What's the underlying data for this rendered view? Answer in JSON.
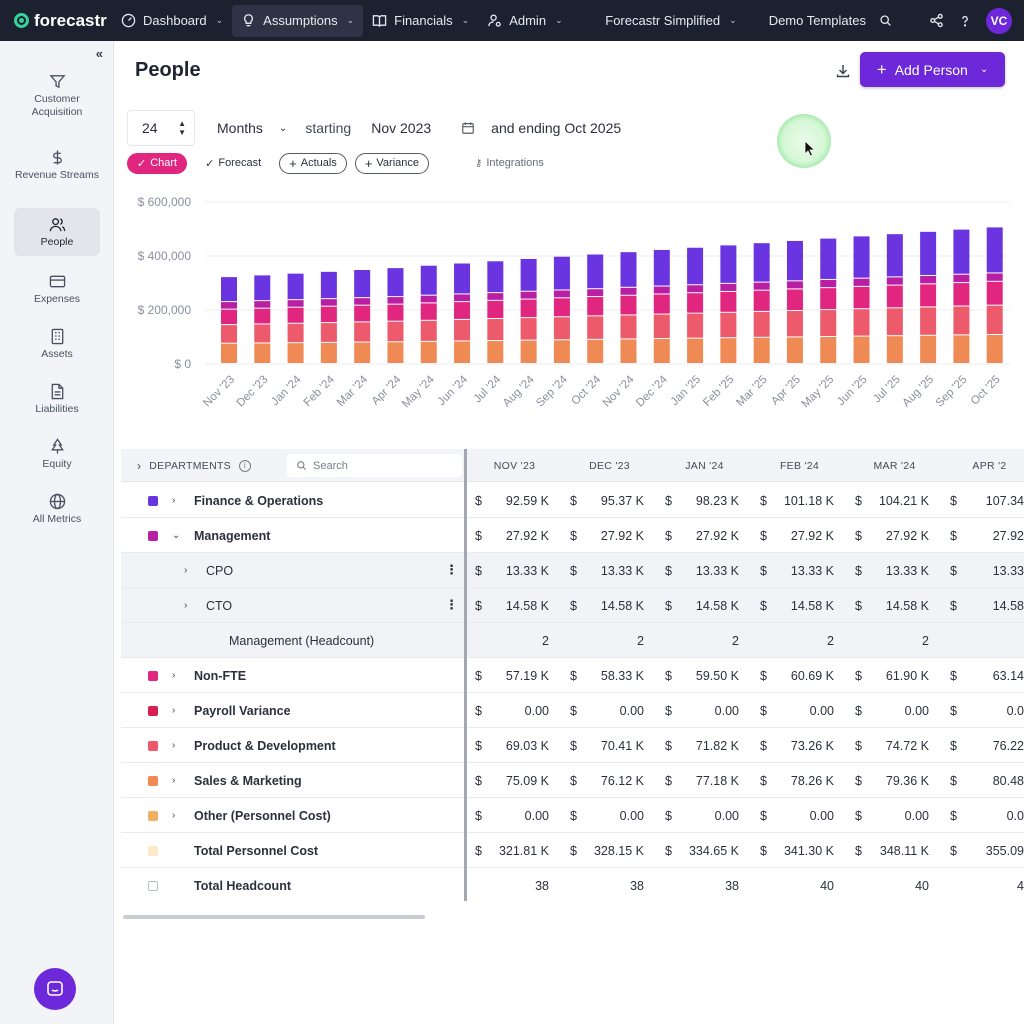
{
  "topbar": {
    "logo": "forecastr",
    "nav": [
      {
        "label": "Dashboard"
      },
      {
        "label": "Assumptions"
      },
      {
        "label": "Financials"
      },
      {
        "label": "Admin"
      }
    ],
    "model": "Forecastr Simplified",
    "templates": "Demo Templates",
    "avatar": "VC"
  },
  "sidebar": {
    "items": [
      {
        "label": "Customer Acquisition",
        "icon": "funnel-icon"
      },
      {
        "label": "Revenue Streams",
        "icon": "dollar-icon"
      },
      {
        "label": "People",
        "icon": "people-icon"
      },
      {
        "label": "Expenses",
        "icon": "card-icon"
      },
      {
        "label": "Assets",
        "icon": "building-icon"
      },
      {
        "label": "Liabilities",
        "icon": "document-icon"
      },
      {
        "label": "Equity",
        "icon": "tree-icon"
      },
      {
        "label": "All Metrics",
        "icon": "globe-icon"
      }
    ]
  },
  "page": {
    "title": "People",
    "add_button": "Add Person"
  },
  "period": {
    "count": "24",
    "unit": "Months",
    "starting_label": "starting",
    "start": "Nov 2023",
    "ending_label": "and ending Oct 2025"
  },
  "toggles": {
    "chart": "Chart",
    "forecast": "Forecast",
    "actuals": "Actuals",
    "variance": "Variance",
    "integrations": "Integrations"
  },
  "chart_data": {
    "type": "bar",
    "stacked": true,
    "ytick_labels": [
      "$ 600,000",
      "$ 400,000",
      "$ 200,000",
      "$ 0"
    ],
    "ylim": [
      0,
      600000
    ],
    "categories": [
      "Nov '23",
      "Dec '23",
      "Jan '24",
      "Feb '24",
      "Mar '24",
      "Apr '24",
      "May '24",
      "Jun '24",
      "Jul '24",
      "Aug '24",
      "Sep '24",
      "Oct '24",
      "Nov '24",
      "Dec '24",
      "Jan '25",
      "Feb '25",
      "Mar '25",
      "Apr '25",
      "May '25",
      "Jun '25",
      "Jul '25",
      "Aug '25",
      "Sep '25",
      "Oct '25"
    ],
    "series": [
      {
        "color": "#f08a55",
        "values": [
          75090,
          76120,
          77180,
          78260,
          79360,
          80480,
          82000,
          83500,
          85000,
          86500,
          88000,
          89500,
          91000,
          92500,
          94000,
          95500,
          97000,
          98500,
          100000,
          101500,
          103000,
          104500,
          106000,
          107500
        ]
      },
      {
        "color": "#ec5a6c",
        "values": [
          69030,
          70410,
          71820,
          73260,
          74720,
          76220,
          78000,
          79800,
          81600,
          83400,
          85200,
          87000,
          88800,
          90600,
          92400,
          94200,
          96000,
          97800,
          99600,
          101400,
          103200,
          105000,
          106800,
          108600
        ]
      },
      {
        "color": "#e0267e",
        "values": [
          57190,
          58330,
          59500,
          60690,
          61900,
          63140,
          64500,
          65900,
          67300,
          68700,
          70100,
          71500,
          72900,
          74300,
          75700,
          77100,
          78500,
          79900,
          81300,
          82700,
          84100,
          85500,
          86900,
          88300
        ]
      },
      {
        "color": "#b81fa3",
        "values": [
          27920,
          27920,
          27920,
          27920,
          27920,
          27920,
          28500,
          28500,
          28500,
          29000,
          29000,
          29000,
          29500,
          29500,
          29500,
          30000,
          30000,
          30000,
          30500,
          30500,
          30500,
          31000,
          31000,
          31000
        ]
      },
      {
        "color": "#6a34e0",
        "values": [
          92590,
          95370,
          98230,
          101180,
          104210,
          107340,
          111000,
          114500,
          118000,
          121500,
          125000,
          128500,
          132000,
          135500,
          139000,
          142500,
          146000,
          149500,
          153000,
          156500,
          160000,
          163500,
          167000,
          170500
        ]
      }
    ]
  },
  "table": {
    "header": {
      "departments": "DEPARTMENTS",
      "search_placeholder": "Search"
    },
    "months": [
      "NOV '23",
      "DEC '23",
      "JAN '24",
      "FEB '24",
      "MAR '24",
      "APR '2"
    ],
    "rows": [
      {
        "name": "Finance & Operations",
        "color": "#6a34e0",
        "caret": "›",
        "level": 0,
        "cells": [
          "92.59 K",
          "95.37 K",
          "98.23 K",
          "101.18 K",
          "104.21 K",
          "107.34"
        ],
        "currency": true
      },
      {
        "name": "Management",
        "color": "#b81fa3",
        "caret": "⌄",
        "level": 0,
        "cells": [
          "27.92 K",
          "27.92 K",
          "27.92 K",
          "27.92 K",
          "27.92 K",
          "27.92"
        ],
        "currency": true
      },
      {
        "name": "CPO",
        "color": "",
        "caret": "›",
        "level": 1,
        "kebab": true,
        "cells": [
          "13.33 K",
          "13.33 K",
          "13.33 K",
          "13.33 K",
          "13.33 K",
          "13.33"
        ],
        "currency": true
      },
      {
        "name": "CTO",
        "color": "",
        "caret": "›",
        "level": 1,
        "kebab": true,
        "cells": [
          "14.58 K",
          "14.58 K",
          "14.58 K",
          "14.58 K",
          "14.58 K",
          "14.58"
        ],
        "currency": true
      },
      {
        "name": "Management (Headcount)",
        "color": "",
        "caret": "",
        "level": 2,
        "cells": [
          "2",
          "2",
          "2",
          "2",
          "2",
          ""
        ],
        "currency": false
      },
      {
        "name": "Non-FTE",
        "color": "#e0267e",
        "caret": "›",
        "level": 0,
        "cells": [
          "57.19 K",
          "58.33 K",
          "59.50 K",
          "60.69 K",
          "61.90 K",
          "63.14"
        ],
        "currency": true
      },
      {
        "name": "Payroll Variance",
        "color": "#d81e52",
        "caret": "›",
        "level": 0,
        "cells": [
          "0.00",
          "0.00",
          "0.00",
          "0.00",
          "0.00",
          "0.0"
        ],
        "currency": true
      },
      {
        "name": "Product & Development",
        "color": "#ec5a6c",
        "caret": "›",
        "level": 0,
        "cells": [
          "69.03 K",
          "70.41 K",
          "71.82 K",
          "73.26 K",
          "74.72 K",
          "76.22"
        ],
        "currency": true
      },
      {
        "name": "Sales & Marketing",
        "color": "#f08a55",
        "caret": "›",
        "level": 0,
        "cells": [
          "75.09 K",
          "76.12 K",
          "77.18 K",
          "78.26 K",
          "79.36 K",
          "80.48"
        ],
        "currency": true
      },
      {
        "name": "Other (Personnel Cost)",
        "color": "#f4b060",
        "caret": "›",
        "level": 0,
        "cells": [
          "0.00",
          "0.00",
          "0.00",
          "0.00",
          "0.00",
          "0.0"
        ],
        "currency": true
      },
      {
        "name": "Total Personnel Cost",
        "color": "#fde9c8",
        "caret": "",
        "level": 0,
        "cells": [
          "321.81 K",
          "328.15 K",
          "334.65 K",
          "341.30 K",
          "348.11 K",
          "355.09"
        ],
        "currency": true
      },
      {
        "name": "Total Headcount",
        "color": "outline",
        "caret": "",
        "level": 0,
        "cells": [
          "38",
          "38",
          "38",
          "40",
          "40",
          "4"
        ],
        "currency": false
      }
    ]
  },
  "currency_symbol": "$",
  "colors": {
    "accent": "#6d28d9",
    "topbar": "#1c2130",
    "chart_toggle": "#e0267e"
  }
}
